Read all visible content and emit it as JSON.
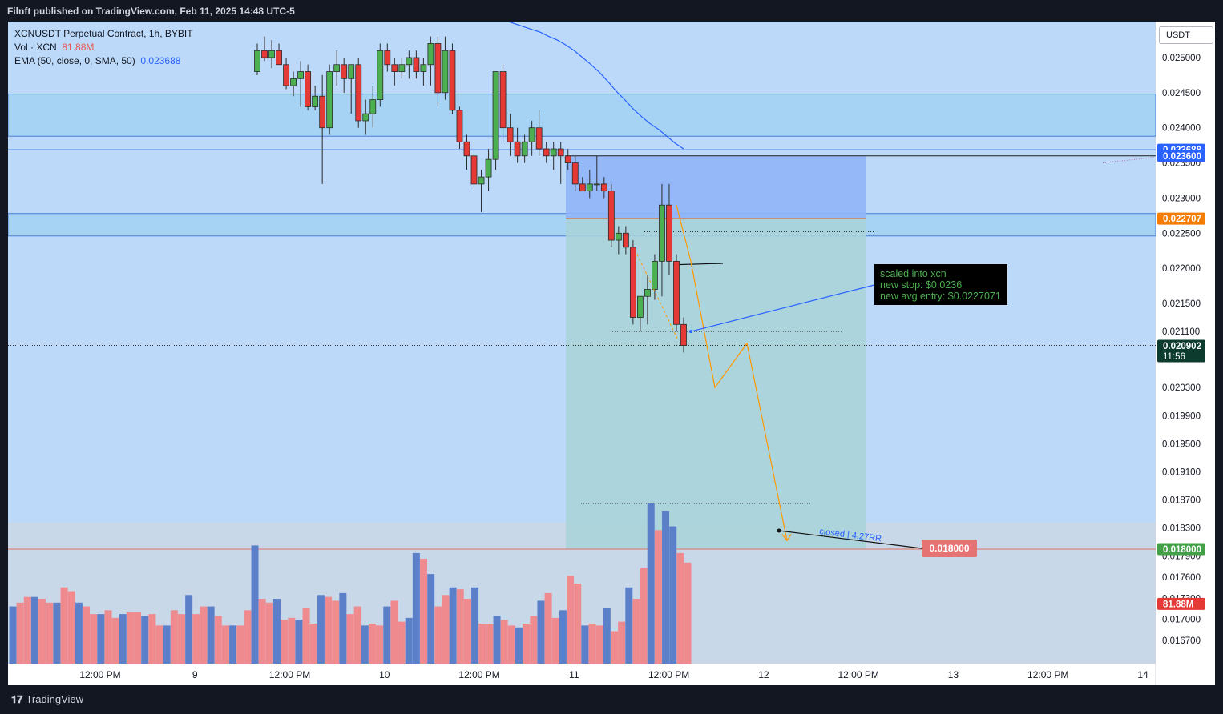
{
  "header": {
    "published": "Filnft published on TradingView.com, Feb 11, 2025 14:48 UTC-5"
  },
  "legend": {
    "symbol": "XCNUSDT Perpetual Contract, 1h, BYBIT",
    "vol_label": "Vol · XCN",
    "vol_value": "81.88M",
    "ema_label": "EMA (50, close, 0, SMA, 50)",
    "ema_value": "0.023688"
  },
  "currency_button": "USDT",
  "annotation": {
    "line1": "scaled into xcn",
    "line2": "new stop: $0.0236",
    "line3": "new avg entry: $0.0227071"
  },
  "closed_label": "closed | 4.27RR",
  "target_label": "0.018000",
  "footer": {
    "brand": "TradingView"
  },
  "colors": {
    "up": "#4caf50",
    "down": "#e53935",
    "ema": "#2962ff",
    "zone": "#2196f3",
    "projection": "#ff9800",
    "vol_up": "#5b7fc9",
    "vol_down": "#ef8a8f"
  },
  "chart_data": {
    "type": "candlestick",
    "y_range": [
      0.01648,
      0.02551
    ],
    "y_ticks": [
      "0.025000",
      "0.024500",
      "0.024000",
      "0.023500",
      "0.023000",
      "0.022500",
      "0.022000",
      "0.021500",
      "0.021100",
      "0.020300",
      "0.019900",
      "0.019500",
      "0.019100",
      "0.018700",
      "0.018300",
      "0.017900",
      "0.017600",
      "0.017300",
      "0.017000",
      "0.016700"
    ],
    "price_badges": [
      {
        "label": "0.023688",
        "value": 0.023688,
        "color": "#2962ff"
      },
      {
        "label": "0.023600",
        "value": 0.0236,
        "color": "#2962ff"
      },
      {
        "label": "0.022707",
        "value": 0.022707,
        "color": "#f57c00"
      },
      {
        "label": "0.020902",
        "sub": "11:56",
        "value": 0.020902,
        "color": "#0d3b2e"
      },
      {
        "label": "0.018000",
        "value": 0.018,
        "color": "#43a047"
      },
      {
        "label": "81.88M",
        "value": 0.01722,
        "color": "#e53935"
      }
    ],
    "x_labels": [
      "12:00 PM",
      "9",
      "12:00 PM",
      "10",
      "12:00 PM",
      "11",
      "12:00 PM",
      "12",
      "12:00 PM",
      "13",
      "12:00 PM",
      "14"
    ],
    "candles": [
      [
        0.0248,
        0.0252,
        0.02475,
        0.0251
      ],
      [
        0.0251,
        0.0253,
        0.02495,
        0.025
      ],
      [
        0.025,
        0.02525,
        0.02485,
        0.0251
      ],
      [
        0.0251,
        0.0252,
        0.0249,
        0.0249
      ],
      [
        0.0249,
        0.025,
        0.02455,
        0.0246
      ],
      [
        0.0246,
        0.0248,
        0.02445,
        0.0247
      ],
      [
        0.0247,
        0.02495,
        0.0243,
        0.0248
      ],
      [
        0.0248,
        0.0249,
        0.02425,
        0.0243
      ],
      [
        0.0243,
        0.0246,
        0.02425,
        0.02445
      ],
      [
        0.02445,
        0.02475,
        0.0232,
        0.024
      ],
      [
        0.024,
        0.0249,
        0.0239,
        0.0248
      ],
      [
        0.0248,
        0.0251,
        0.0246,
        0.0249
      ],
      [
        0.0249,
        0.025,
        0.0245,
        0.0247
      ],
      [
        0.0247,
        0.0249,
        0.0242,
        0.0249
      ],
      [
        0.0249,
        0.025,
        0.024,
        0.0241
      ],
      [
        0.0241,
        0.0244,
        0.0239,
        0.0242
      ],
      [
        0.0242,
        0.0246,
        0.024,
        0.0244
      ],
      [
        0.0244,
        0.0252,
        0.0243,
        0.0251
      ],
      [
        0.0251,
        0.0252,
        0.0248,
        0.0249
      ],
      [
        0.0249,
        0.025,
        0.0246,
        0.0248
      ],
      [
        0.0248,
        0.025,
        0.0247,
        0.0249
      ],
      [
        0.0249,
        0.0251,
        0.0247,
        0.025
      ],
      [
        0.025,
        0.0251,
        0.0247,
        0.0248
      ],
      [
        0.0248,
        0.025,
        0.0246,
        0.0249
      ],
      [
        0.0249,
        0.0253,
        0.0246,
        0.0252
      ],
      [
        0.0252,
        0.0253,
        0.0243,
        0.0245
      ],
      [
        0.0245,
        0.0253,
        0.0244,
        0.0251
      ],
      [
        0.0251,
        0.0252,
        0.0242,
        0.02425
      ],
      [
        0.02425,
        0.0243,
        0.0237,
        0.0238
      ],
      [
        0.0238,
        0.0239,
        0.0234,
        0.0236
      ],
      [
        0.0236,
        0.0238,
        0.0231,
        0.0232
      ],
      [
        0.0232,
        0.0234,
        0.0228,
        0.0233
      ],
      [
        0.0233,
        0.0237,
        0.0231,
        0.02355
      ],
      [
        0.02355,
        0.0248,
        0.0234,
        0.0248
      ],
      [
        0.0248,
        0.0249,
        0.0238,
        0.024
      ],
      [
        0.024,
        0.0242,
        0.0236,
        0.0238
      ],
      [
        0.0238,
        0.024,
        0.0235,
        0.0236
      ],
      [
        0.0236,
        0.0239,
        0.0235,
        0.0238
      ],
      [
        0.0238,
        0.0241,
        0.0236,
        0.024
      ],
      [
        0.024,
        0.02425,
        0.0236,
        0.0237
      ],
      [
        0.0237,
        0.0238,
        0.0235,
        0.0236
      ],
      [
        0.0236,
        0.0238,
        0.0234,
        0.0237
      ],
      [
        0.0237,
        0.0238,
        0.0232,
        0.0236
      ],
      [
        0.0236,
        0.0237,
        0.0234,
        0.0235
      ],
      [
        0.0235,
        0.0236,
        0.0231,
        0.0232
      ],
      [
        0.0232,
        0.0233,
        0.0231,
        0.0231
      ],
      [
        0.0231,
        0.0234,
        0.023,
        0.0232
      ],
      [
        0.0232,
        0.0236,
        0.0231,
        0.0232
      ],
      [
        0.0232,
        0.0233,
        0.023,
        0.0231
      ],
      [
        0.0231,
        0.0232,
        0.0223,
        0.0224
      ],
      [
        0.0224,
        0.0226,
        0.0222,
        0.0225
      ],
      [
        0.0225,
        0.0226,
        0.0222,
        0.0223
      ],
      [
        0.0223,
        0.0224,
        0.0212,
        0.0213
      ],
      [
        0.0213,
        0.0216,
        0.0211,
        0.0216
      ],
      [
        0.0216,
        0.0219,
        0.0212,
        0.0217
      ],
      [
        0.0217,
        0.0222,
        0.02155,
        0.0221
      ],
      [
        0.0221,
        0.0232,
        0.0216,
        0.0229
      ],
      [
        0.0229,
        0.0232,
        0.0219,
        0.0221
      ],
      [
        0.0221,
        0.0222,
        0.0211,
        0.0212
      ],
      [
        0.0212,
        0.0213,
        0.0208,
        0.0209
      ]
    ],
    "volume": [
      30,
      32,
      35,
      35,
      34,
      32,
      32,
      40,
      38,
      32,
      30,
      26,
      26,
      28,
      24,
      26,
      27,
      27,
      25,
      26,
      20,
      20,
      28,
      26,
      36,
      26,
      30,
      30,
      25,
      20,
      20,
      20,
      28,
      62,
      34,
      32,
      34,
      23,
      24,
      23,
      29,
      21,
      36,
      35,
      33,
      37,
      26,
      30,
      20,
      21,
      20,
      30,
      33,
      22,
      24,
      58,
      55,
      47,
      30,
      36,
      40,
      39,
      34,
      40,
      21,
      21,
      25,
      23,
      20,
      19,
      21,
      25,
      33,
      37,
      24,
      28,
      46,
      42,
      20,
      21,
      20,
      29,
      17,
      22,
      40,
      34,
      50,
      84,
      70,
      80,
      72,
      58,
      53
    ],
    "volume_colors": "alternating series as rendered",
    "ema": [
      0.02574,
      0.0257,
      0.02565,
      0.0256,
      0.02556,
      0.02552,
      0.02548,
      0.02544,
      0.0254,
      0.02536,
      0.0253,
      0.02525,
      0.02518,
      0.0251,
      0.025,
      0.0249,
      0.02479,
      0.02466,
      0.02452,
      0.0244,
      0.02427,
      0.02416,
      0.02406,
      0.02398,
      0.02388,
      0.02378,
      0.0237
    ],
    "zones": [
      {
        "from": 0.02388,
        "to": 0.02448
      },
      {
        "from": 0.02246,
        "to": 0.02278
      }
    ],
    "position": {
      "entry": 0.022707,
      "stop": 0.0236,
      "target": 0.018
    }
  }
}
